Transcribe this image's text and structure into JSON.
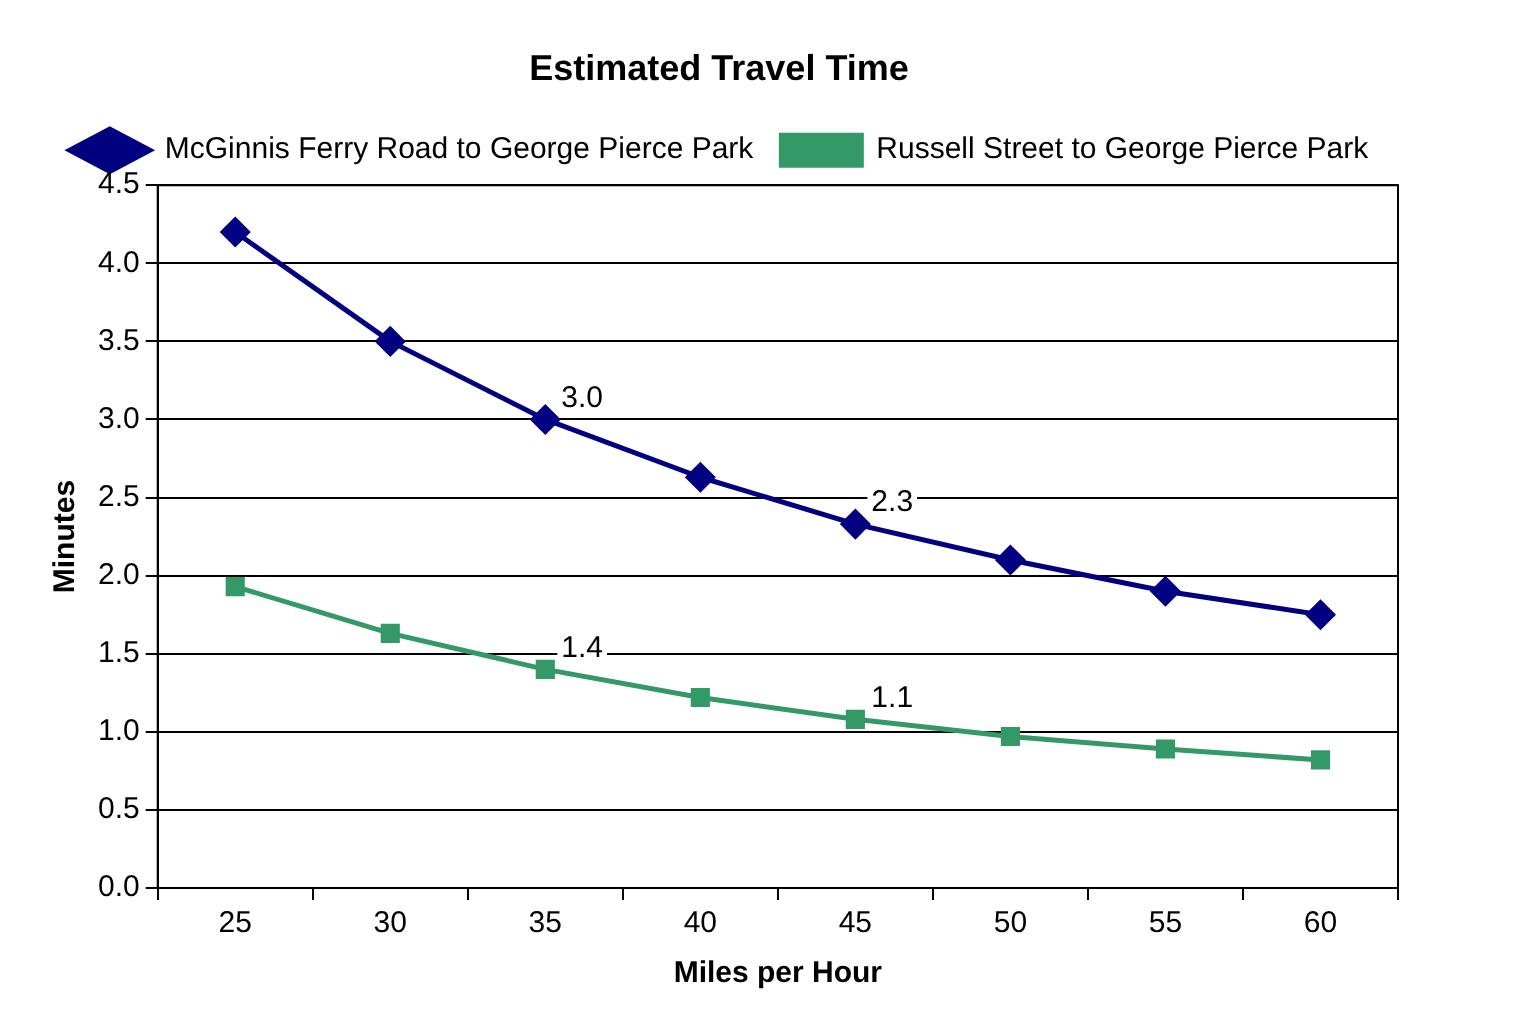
{
  "chart_data": {
    "type": "line",
    "title": "Estimated Travel Time",
    "xlabel": "Miles per Hour",
    "ylabel": "Minutes",
    "categories": [
      "25",
      "30",
      "35",
      "40",
      "45",
      "50",
      "55",
      "60"
    ],
    "series": [
      {
        "name": "McGinnis Ferry Road to George Pierce Park",
        "color": "#000080",
        "marker": "diamond",
        "values": [
          4.2,
          3.5,
          3.0,
          2.63,
          2.33,
          2.1,
          1.9,
          1.75
        ],
        "value_labels": [
          null,
          null,
          "3.0",
          null,
          "2.3",
          null,
          null,
          null
        ]
      },
      {
        "name": "Russell Street to George Pierce Park",
        "color": "#339966",
        "marker": "square",
        "values": [
          1.93,
          1.63,
          1.4,
          1.22,
          1.08,
          0.97,
          0.89,
          0.82
        ],
        "value_labels": [
          null,
          null,
          "1.4",
          null,
          "1.1",
          null,
          null,
          null
        ]
      }
    ],
    "ylim": [
      0,
      4.5
    ],
    "yticks": [
      {
        "value": 0,
        "label": "0.0"
      },
      {
        "value": 0.5,
        "label": "0.5"
      },
      {
        "value": 1,
        "label": "1.0"
      },
      {
        "value": 1.5,
        "label": "1.5"
      },
      {
        "value": 2,
        "label": "2.0"
      },
      {
        "value": 2.5,
        "label": "2.5"
      },
      {
        "value": 3,
        "label": "3.0"
      },
      {
        "value": 3.5,
        "label": "3.5"
      },
      {
        "value": 4,
        "label": "4.0"
      },
      {
        "value": 4.5,
        "label": "4.5"
      }
    ],
    "grid": "y",
    "legend": "top",
    "line_style": "solid"
  }
}
